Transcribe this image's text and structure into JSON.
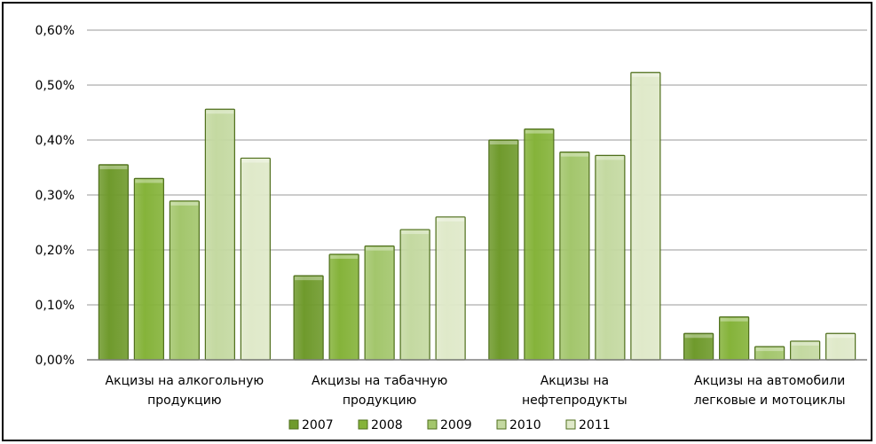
{
  "chart_data": {
    "type": "bar",
    "title": "",
    "xlabel": "",
    "ylabel": "",
    "ylim": [
      0,
      0.6
    ],
    "y_ticks": [
      "0,00%",
      "0,10%",
      "0,20%",
      "0,30%",
      "0,40%",
      "0,50%",
      "0,60%"
    ],
    "grid": true,
    "legend_position": "bottom",
    "categories": [
      [
        "Акцизы на алкогольную",
        "продукцию"
      ],
      [
        "Акцизы на табачную",
        "продукцию"
      ],
      [
        "Акцизы на",
        "нефтепродукты"
      ],
      [
        "Акцизы на автомобили",
        "легковые и мотоциклы"
      ]
    ],
    "series": [
      {
        "name": "2007",
        "color": "#6f9a2c",
        "values": [
          0.355,
          0.153,
          0.4,
          0.048
        ]
      },
      {
        "name": "2008",
        "color": "#85b33a",
        "values": [
          0.33,
          0.192,
          0.42,
          0.078
        ]
      },
      {
        "name": "2009",
        "color": "#a3c66c",
        "values": [
          0.289,
          0.207,
          0.378,
          0.024
        ]
      },
      {
        "name": "2010",
        "color": "#c4d9a1",
        "values": [
          0.456,
          0.237,
          0.372,
          0.034
        ]
      },
      {
        "name": "2011",
        "color": "#dfe9c9",
        "values": [
          0.367,
          0.26,
          0.523,
          0.048
        ]
      }
    ]
  }
}
